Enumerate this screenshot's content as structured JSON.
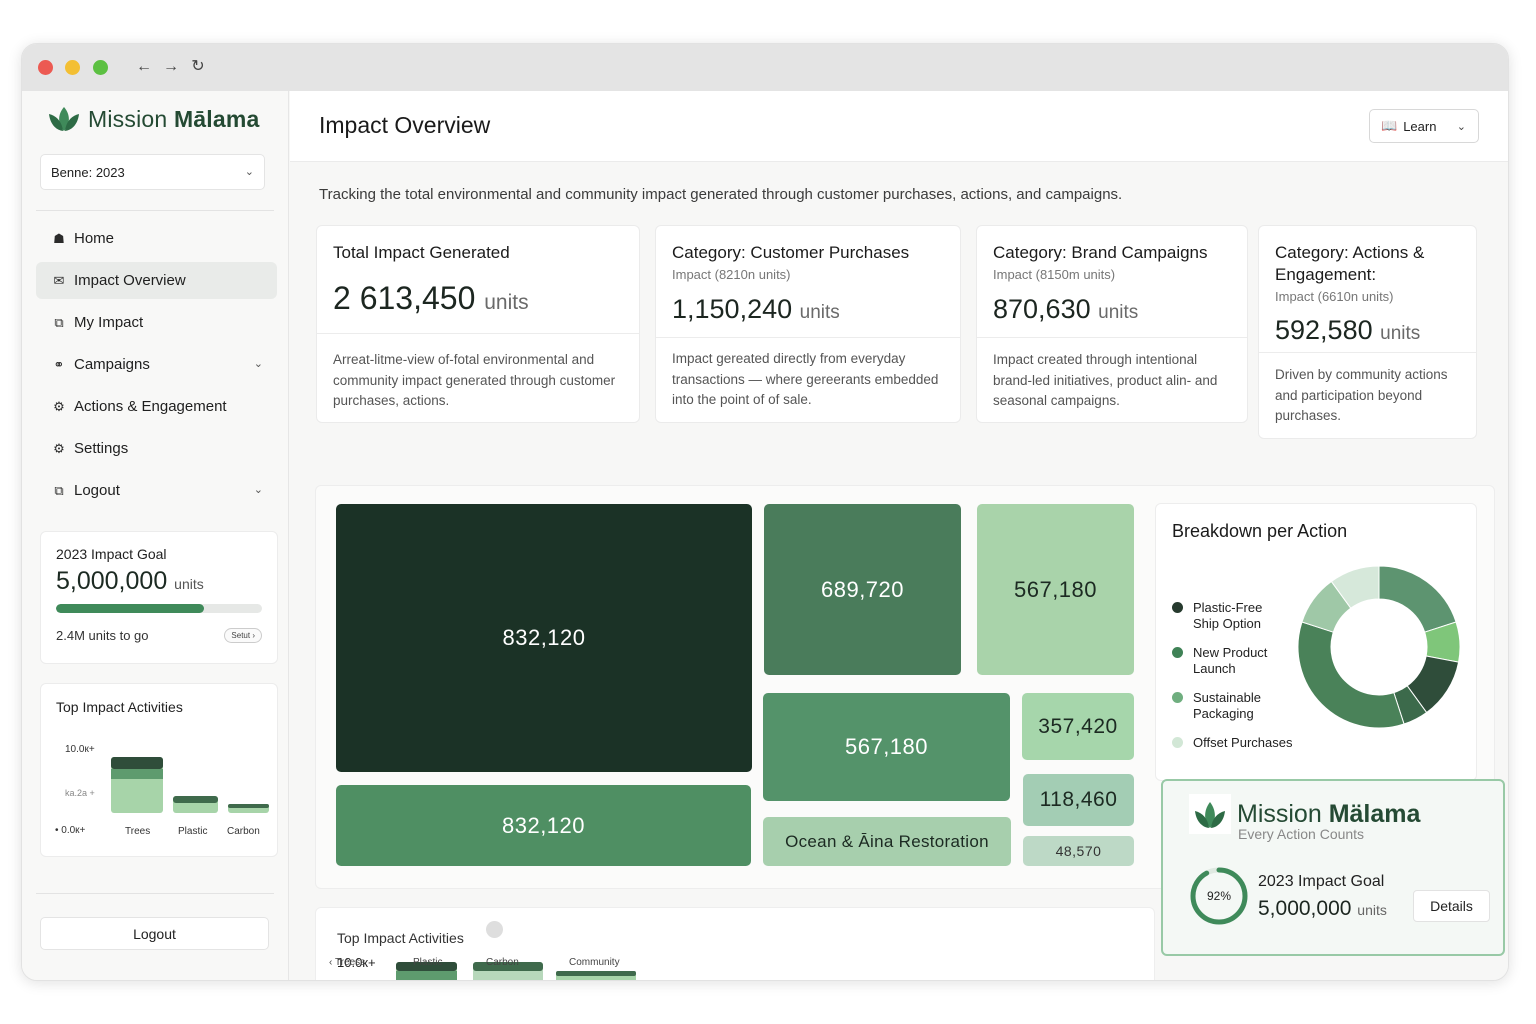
{
  "sidebar": {
    "brand_prefix": "Mission ",
    "brand_bold": "Mālama",
    "year_select": "Benne: 2023",
    "nav": [
      {
        "label": "Home",
        "icon": "home-icon"
      },
      {
        "label": "Impact Overview",
        "icon": "mail-icon"
      },
      {
        "label": "My Impact",
        "icon": "share-icon"
      },
      {
        "label": "Campaigns",
        "icon": "link-icon"
      },
      {
        "label": "Actions & Engagement",
        "icon": "gear-icon"
      },
      {
        "label": "Settings",
        "icon": "gear-icon"
      },
      {
        "label": "Logout",
        "icon": "logout-icon"
      }
    ],
    "goal": {
      "title": "2023 Impact Goal",
      "value": "5,000,000",
      "unit": "units",
      "progress": 0.72,
      "remaining": "2.4M units to go",
      "pill": "Setut ›"
    },
    "activities": {
      "title": "Top Impact Activities",
      "y_ticks": [
        "10.0к+",
        "ka.2a +",
        "• 0.0к+"
      ],
      "categories": [
        "Trees",
        "Plastic",
        "Carbon"
      ]
    },
    "logout_label": "Logout"
  },
  "header": {
    "title": "Impact Overview",
    "learn_label": "Learn"
  },
  "subtitle": "Tracking the total environmental and community impact generated through customer purchases, actions, and campaigns.",
  "stats": [
    {
      "title": "Total Impact Generated",
      "sub": "",
      "value": "2 613,450",
      "unit": "units",
      "desc": "Arreat-litme-view of-fotal environmental and community impact generated through customer purchases, actions."
    },
    {
      "title": "Category: Customer Purchases",
      "sub": "Impact (8210n units)",
      "value": "1,150,240",
      "unit": "units",
      "desc": "Impact gereated directly from everyday transactions — where gereerants embedded into the point of of sale."
    },
    {
      "title": "Category: Brand Campaigns",
      "sub": "Impact (8150m units)",
      "value": "870,630",
      "unit": "units",
      "desc": "Impact created through intentional brand-led initiatives, product alin- and seasonal campaigns."
    },
    {
      "title": "Category: Actions & Engagement:",
      "sub": "Impact (6610n units)",
      "value": "592,580",
      "unit": "units",
      "desc": "Driven by community actions and participation beyond purchases."
    }
  ],
  "treemap": [
    {
      "label": "832,120",
      "color": "#1b3226"
    },
    {
      "label": "689,720",
      "color": "#4a7c5b"
    },
    {
      "label": "567,180",
      "color": "#a9d3aa"
    },
    {
      "label": "832,120",
      "color": "#4f8f63"
    },
    {
      "label": "567,180",
      "color": "#54936a"
    },
    {
      "label": "357,420",
      "color": "#a6d6ab"
    },
    {
      "label": "118,460",
      "color": "#a3cdb4"
    },
    {
      "label": "Ocean & Āina Restoration",
      "color": "#a7cfad"
    },
    {
      "label": "48,570",
      "color": "#bdd9c6"
    }
  ],
  "breakdown": {
    "title": "Breakdown per Action",
    "legend": [
      {
        "label": "Plastic-Free Ship Option",
        "color": "#263a2e"
      },
      {
        "label": "New Product Launch",
        "color": "#3f8256"
      },
      {
        "label": "Sustainable Packaging",
        "color": "#6fae7f"
      },
      {
        "label": "Offset Purchases",
        "color": "#d2e7d6"
      }
    ]
  },
  "chart_data": {
    "type": "pie",
    "title": "Breakdown per Action",
    "slices": [
      {
        "name": "Plastic-Free Ship Option",
        "value": 20,
        "color": "#5d9470"
      },
      {
        "name": "New Product Launch",
        "value": 8,
        "color": "#7fc67a"
      },
      {
        "name": "Sustainable Packaging",
        "value": 12,
        "color": "#2f4d3a"
      },
      {
        "name": "Offset Purchases",
        "value": 5,
        "color": "#3c6a4b"
      },
      {
        "name": "Segment 5",
        "value": 35,
        "color": "#4a8259"
      },
      {
        "name": "Segment 6",
        "value": 10,
        "color": "#9fc8a7"
      },
      {
        "name": "Segment 7",
        "value": 10,
        "color": "#d6e8da"
      }
    ]
  },
  "promo": {
    "brand_prefix": "Mission ",
    "brand_bold": "Mälama",
    "tagline": "Every Action Counts",
    "percent": "92%",
    "percent_value": 0.92,
    "goal_title": "2023 Impact Goal",
    "goal_value": "5,000,000",
    "goal_unit": "units",
    "details_label": "Details"
  },
  "bottom_activities": {
    "title": "Top Impact Activities",
    "y_tick": "10.0к+",
    "categories": [
      "Treess",
      "Plastic",
      "Carbon",
      "Community"
    ]
  },
  "colors": {
    "accent": "#3f8a5a",
    "brand_dark": "#244a33"
  }
}
